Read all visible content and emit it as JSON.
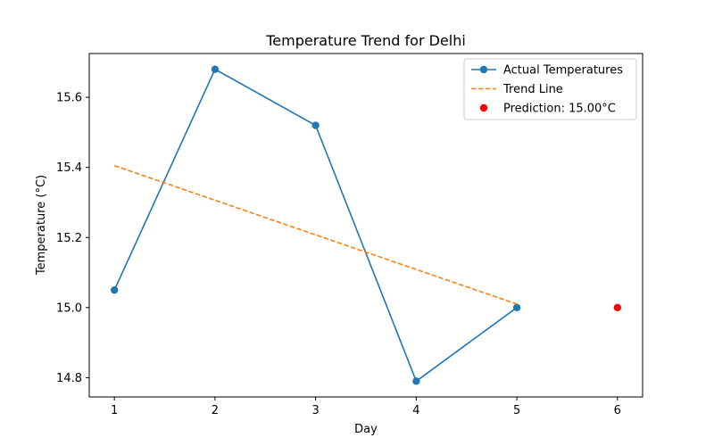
{
  "chart_data": {
    "type": "line",
    "title": "Temperature Trend for Delhi",
    "xlabel": "Day",
    "ylabel": "Temperature (°C)",
    "xlim": [
      0.75,
      6.25
    ],
    "ylim": [
      14.745,
      15.725
    ],
    "xticks": [
      1,
      2,
      3,
      4,
      5,
      6
    ],
    "yticks": [
      14.8,
      15.0,
      15.2,
      15.4,
      15.6
    ],
    "ytick_labels": [
      "14.8",
      "15.0",
      "15.2",
      "15.4",
      "15.6"
    ],
    "grid": false,
    "legend_position": "top-right",
    "series": [
      {
        "name": "Actual Temperatures",
        "kind": "line-markers",
        "color": "#1f77b4",
        "x": [
          1,
          2,
          3,
          4,
          5
        ],
        "y": [
          15.05,
          15.68,
          15.52,
          14.79,
          15.0
        ]
      },
      {
        "name": "Trend Line",
        "kind": "dashed-line",
        "color": "#ff7f0e",
        "x": [
          1,
          5
        ],
        "y": [
          15.405,
          15.01
        ]
      },
      {
        "name": "Prediction: 15.00°C",
        "kind": "scatter",
        "color": "#ff0000",
        "x": [
          6
        ],
        "y": [
          15.0
        ]
      }
    ]
  }
}
